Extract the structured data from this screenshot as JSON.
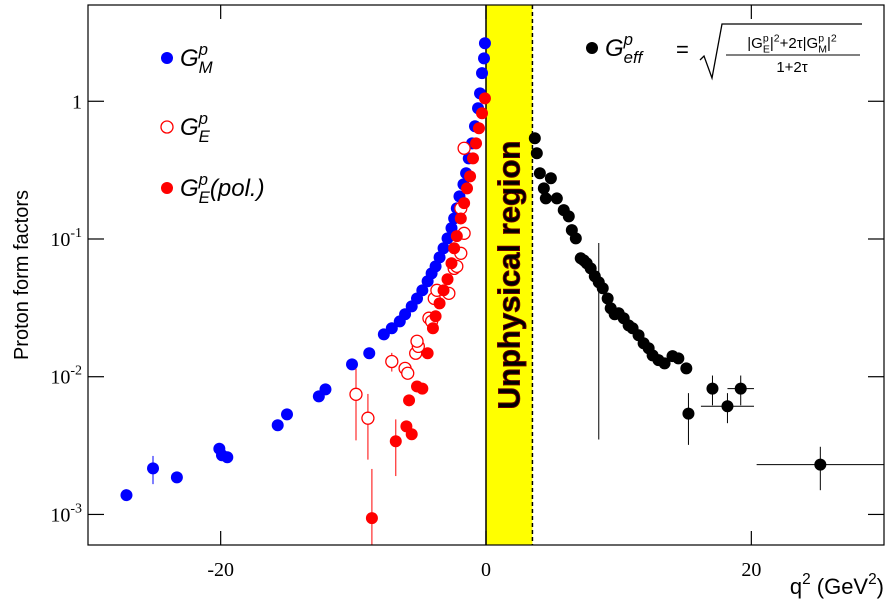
{
  "chart_data": {
    "type": "scatter",
    "ylabel": "Proton form factors",
    "xlabel": "q^{2} (GeV^{2})",
    "xlim": [
      -30,
      30
    ],
    "xticks": [
      -20,
      0,
      20
    ],
    "ylim": [
      0.0006,
      5
    ],
    "yscale": "log",
    "yticks": [
      {
        "value": 0.001,
        "label": "10^{-3}"
      },
      {
        "value": 0.01,
        "label": "10^{-2}"
      },
      {
        "value": 0.1,
        "label": "10^{-1}"
      },
      1
    ],
    "band": {
      "x": [
        0,
        3.5
      ],
      "color": "#ffff00",
      "label": "Unphysical region"
    },
    "formula": {
      "equals": "=",
      "numerator": "|G^{p}_{E}|^{2}+2τ|G^{p}_{M}|^{2}",
      "denominator": "1+2τ"
    },
    "series": [
      {
        "name": "G^{p}_{M}",
        "color": "#0000ff",
        "marker": "filled",
        "x": [
          -27.1,
          -25.1,
          -23.3,
          -20.1,
          -19.9,
          -19.5,
          -15.7,
          -15.0,
          -12.6,
          -12.1,
          -10.1,
          -8.8,
          -7.7,
          -7.1,
          -6.5,
          -6.1,
          -5.6,
          -5.2,
          -4.8,
          -4.4,
          -4.1,
          -3.8,
          -3.5,
          -3.2,
          -2.9,
          -2.6,
          -2.4,
          -2.2,
          -2.0,
          -1.7,
          -1.5,
          -1.3,
          -1.05,
          -0.83,
          -0.6,
          -0.45,
          -0.3,
          -0.15,
          -0.08
        ],
        "values": [
          0.00138,
          0.00216,
          0.00186,
          0.003,
          0.00269,
          0.0026,
          0.00444,
          0.00533,
          0.0072,
          0.0081,
          0.0123,
          0.0148,
          0.0203,
          0.0225,
          0.0252,
          0.0284,
          0.0324,
          0.037,
          0.0424,
          0.0493,
          0.0563,
          0.0633,
          0.0736,
          0.0856,
          0.101,
          0.12,
          0.141,
          0.167,
          0.204,
          0.249,
          0.3,
          0.385,
          0.495,
          0.658,
          0.89,
          1.14,
          1.6,
          2.05,
          2.64
        ],
        "yerr": [
          null,
          0.0005,
          null,
          null,
          null,
          null,
          null,
          null,
          null,
          null,
          null,
          null,
          null,
          null,
          null,
          null,
          null,
          null,
          null,
          null,
          null,
          null,
          null,
          null,
          null,
          null,
          null,
          null,
          null,
          null,
          null,
          null,
          null,
          null,
          null,
          null,
          null,
          null,
          null
        ]
      },
      {
        "name": "G^{p}_{E}",
        "color": "#ff0000",
        "marker": "open",
        "x": [
          -9.8,
          -8.9,
          -7.1,
          -6.1,
          -5.9,
          -5.3,
          -5.1,
          -5.2,
          -4.3,
          -4.1,
          -3.9,
          -3.7,
          -2.8,
          -2.4,
          -2.2,
          -1.9,
          -1.65,
          -1.9,
          -1.65
        ],
        "values": [
          0.00745,
          0.005,
          0.0129,
          0.0115,
          0.0106,
          0.0148,
          0.0166,
          0.0181,
          0.0266,
          0.0252,
          0.037,
          0.0424,
          0.0403,
          0.0612,
          0.0633,
          0.0787,
          0.11,
          0.167,
          0.456
        ],
        "yerr": [
          0.004,
          0.0025,
          0.002,
          null,
          null,
          null,
          null,
          null,
          null,
          null,
          null,
          null,
          null,
          null,
          null,
          null,
          null,
          null,
          null
        ]
      },
      {
        "name": "G^{p}_{E}(pol.)",
        "color": "#ff0000",
        "marker": "filled",
        "x": [
          -8.6,
          -6.8,
          -6.0,
          -5.8,
          -5.6,
          -5.2,
          -4.8,
          -4.4,
          -4.0,
          -3.8,
          -3.5,
          -3.2,
          -2.9,
          -2.6,
          -2.4,
          -2.2,
          -1.9,
          -1.65,
          -1.43,
          -1.2,
          -0.98,
          -0.75,
          -0.53,
          -0.3,
          -0.08
        ],
        "values": [
          0.00094,
          0.0034,
          0.00436,
          0.00674,
          0.00382,
          0.0085,
          0.0082,
          0.0148,
          0.0225,
          0.0275,
          0.0341,
          0.0424,
          0.051,
          0.0667,
          0.0856,
          0.105,
          0.141,
          0.182,
          0.233,
          0.285,
          0.385,
          0.495,
          0.637,
          0.818,
          1.05
        ],
        "yerr": [
          0.0012,
          0.0015,
          null,
          null,
          null,
          null,
          null,
          null,
          null,
          null,
          null,
          null,
          null,
          null,
          null,
          null,
          null,
          null,
          null,
          null,
          null,
          null,
          null,
          null,
          null
        ]
      },
      {
        "name": "G^{p}_{eff}",
        "color": "#000000",
        "marker": "filled",
        "x": [
          3.68,
          3.83,
          4.06,
          4.36,
          4.51,
          4.89,
          5.34,
          5.86,
          6.24,
          6.47,
          6.77,
          7.14,
          7.37,
          7.59,
          7.89,
          8.2,
          8.5,
          8.8,
          9.17,
          9.4,
          9.7,
          10.0,
          10.38,
          10.75,
          11.05,
          11.5,
          11.88,
          12.26,
          12.56,
          13.0,
          13.46,
          14.06,
          14.5,
          15.1,
          15.26,
          17.07,
          18.2,
          19.2,
          25.2
        ],
        "values": [
          0.539,
          0.419,
          0.3,
          0.233,
          0.197,
          0.276,
          0.197,
          0.162,
          0.146,
          0.116,
          0.101,
          0.0724,
          0.07,
          0.0667,
          0.0612,
          0.0536,
          0.0485,
          0.0439,
          0.037,
          0.0314,
          0.0284,
          0.0289,
          0.0266,
          0.0236,
          0.0225,
          0.02,
          0.0175,
          0.0161,
          0.0143,
          0.0132,
          0.0125,
          0.0141,
          0.0136,
          0.0115,
          0.0054,
          0.0082,
          0.0061,
          0.0082,
          0.0023
        ],
        "yerr": [
          null,
          null,
          null,
          null,
          null,
          null,
          null,
          null,
          null,
          null,
          null,
          null,
          null,
          null,
          null,
          null,
          0.045,
          null,
          null,
          null,
          null,
          null,
          null,
          null,
          null,
          null,
          null,
          null,
          null,
          null,
          null,
          null,
          null,
          null,
          0.0022,
          0.002,
          0.0015,
          0.002,
          0.0008
        ],
        "xerr": [
          null,
          null,
          null,
          null,
          null,
          null,
          null,
          null,
          null,
          null,
          null,
          null,
          null,
          null,
          null,
          null,
          null,
          null,
          null,
          null,
          null,
          null,
          null,
          null,
          null,
          null,
          null,
          null,
          null,
          null,
          null,
          null,
          null,
          null,
          null,
          null,
          2,
          1,
          4.8
        ]
      }
    ]
  }
}
